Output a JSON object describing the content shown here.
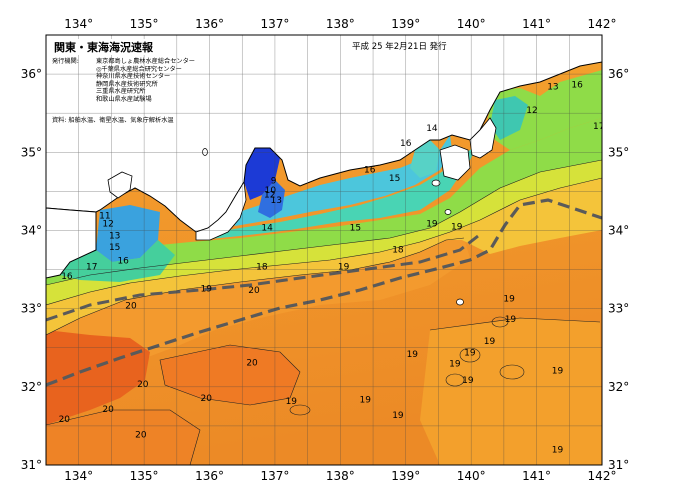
{
  "map": {
    "title": "関東・東海海況速報",
    "issue_date": "平成 25 年2月21日 発行",
    "publisher_label": "発行機関:",
    "publishers": [
      "東京都島しょ農林水産総合センター",
      "◎千葉県水産総合研究センター",
      "神奈川県水産技術センター",
      "静岡県水産技術研究所",
      "三重県水産研究所",
      "和歌山県水産試験場"
    ],
    "data_sources": "資料: 船舶水温、衛星水温、気象庁解析水温",
    "lon_labels": [
      "134°",
      "135°",
      "136°",
      "137°",
      "138°",
      "139°",
      "140°",
      "141°",
      "142°"
    ],
    "lat_labels": [
      "36°",
      "35°",
      "34°",
      "33°",
      "32°",
      "31°"
    ],
    "colors": {
      "land": "#ffffff",
      "coast": "#000000",
      "kuroshio_axis": "#555555",
      "temp_9": "#1e3ad8",
      "temp_12": "#3aa0e0",
      "temp_14": "#3fd7c8",
      "temp_15": "#79e04a",
      "temp_16": "#b7ea3c",
      "temp_18": "#f4d23a",
      "temp_19": "#f5b030",
      "temp_20": "#ef8a25"
    },
    "temperature_labels": [
      {
        "t": "9",
        "lon": 136.98,
        "lat": 34.6
      },
      {
        "t": "10",
        "lon": 136.93,
        "lat": 34.48
      },
      {
        "t": "12",
        "lon": 136.92,
        "lat": 34.42
      },
      {
        "t": "13",
        "lon": 137.02,
        "lat": 34.35
      },
      {
        "t": "14",
        "lon": 136.88,
        "lat": 34.0
      },
      {
        "t": "11",
        "lon": 134.4,
        "lat": 34.15
      },
      {
        "t": "12",
        "lon": 134.45,
        "lat": 34.05
      },
      {
        "t": "13",
        "lon": 134.55,
        "lat": 33.9
      },
      {
        "t": "15",
        "lon": 134.55,
        "lat": 33.75
      },
      {
        "t": "16",
        "lon": 134.68,
        "lat": 33.58
      },
      {
        "t": "17",
        "lon": 134.2,
        "lat": 33.5
      },
      {
        "t": "16",
        "lon": 133.82,
        "lat": 33.38
      },
      {
        "t": "15",
        "lon": 138.23,
        "lat": 34.0
      },
      {
        "t": "16",
        "lon": 138.45,
        "lat": 34.74
      },
      {
        "t": "15",
        "lon": 138.83,
        "lat": 34.63
      },
      {
        "t": "16",
        "lon": 139.0,
        "lat": 35.08
      },
      {
        "t": "14",
        "lon": 139.4,
        "lat": 35.27
      },
      {
        "t": "12",
        "lon": 140.93,
        "lat": 35.5
      },
      {
        "t": "13",
        "lon": 141.25,
        "lat": 35.8
      },
      {
        "t": "16",
        "lon": 141.62,
        "lat": 35.83
      },
      {
        "t": "17",
        "lon": 141.95,
        "lat": 35.3
      },
      {
        "t": "18",
        "lon": 136.8,
        "lat": 33.5
      },
      {
        "t": "18",
        "lon": 138.88,
        "lat": 33.72
      },
      {
        "t": "19",
        "lon": 138.05,
        "lat": 33.5
      },
      {
        "t": "19",
        "lon": 139.4,
        "lat": 34.05
      },
      {
        "t": "19",
        "lon": 139.78,
        "lat": 34.01
      },
      {
        "t": "19",
        "lon": 135.95,
        "lat": 33.22
      },
      {
        "t": "19",
        "lon": 140.58,
        "lat": 33.09
      },
      {
        "t": "19",
        "lon": 140.6,
        "lat": 32.83
      },
      {
        "t": "19",
        "lon": 140.28,
        "lat": 32.55
      },
      {
        "t": "19",
        "lon": 139.98,
        "lat": 32.4
      },
      {
        "t": "19",
        "lon": 139.75,
        "lat": 32.26
      },
      {
        "t": "19",
        "lon": 139.1,
        "lat": 32.38
      },
      {
        "t": "19",
        "lon": 141.32,
        "lat": 32.17
      },
      {
        "t": "19",
        "lon": 139.95,
        "lat": 32.05
      },
      {
        "t": "19",
        "lon": 138.38,
        "lat": 31.8
      },
      {
        "t": "19",
        "lon": 137.25,
        "lat": 31.78
      },
      {
        "t": "19",
        "lon": 138.88,
        "lat": 31.6
      },
      {
        "t": "19",
        "lon": 141.32,
        "lat": 31.16
      },
      {
        "t": "20",
        "lon": 136.68,
        "lat": 33.2
      },
      {
        "t": "20",
        "lon": 134.8,
        "lat": 33.0
      },
      {
        "t": "20",
        "lon": 136.65,
        "lat": 32.27
      },
      {
        "t": "20",
        "lon": 134.98,
        "lat": 32.0
      },
      {
        "t": "20",
        "lon": 135.95,
        "lat": 31.82
      },
      {
        "t": "20",
        "lon": 134.45,
        "lat": 31.68
      },
      {
        "t": "20",
        "lon": 133.78,
        "lat": 31.55
      },
      {
        "t": "20",
        "lon": 134.95,
        "lat": 31.35
      }
    ]
  }
}
